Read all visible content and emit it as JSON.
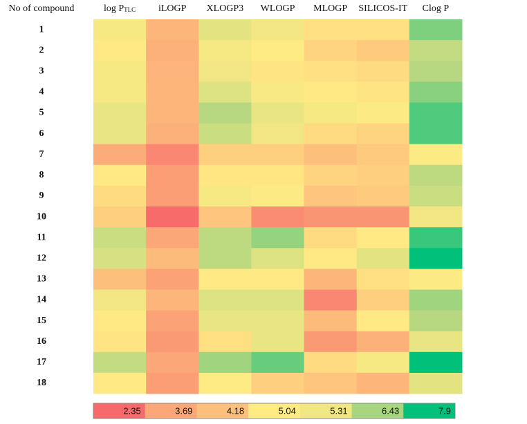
{
  "chart_data": {
    "type": "heatmap",
    "corner_label": "No of compound",
    "columns": [
      {
        "name": "log P",
        "sub": "TLC"
      },
      {
        "name": "iLOGP"
      },
      {
        "name": "XLOGP3"
      },
      {
        "name": "WLOGP"
      },
      {
        "name": "MLOGP"
      },
      {
        "name": "SILICOS-IT"
      },
      {
        "name": "Clog P"
      }
    ],
    "rows": [
      "1",
      "2",
      "3",
      "4",
      "5",
      "6",
      "7",
      "8",
      "9",
      "10",
      "11",
      "12",
      "13",
      "14",
      "15",
      "16",
      "17",
      "18"
    ],
    "values": [
      [
        5.2,
        4.0,
        5.5,
        5.3,
        4.8,
        4.8,
        6.8
      ],
      [
        5.0,
        3.9,
        5.2,
        5.05,
        4.6,
        4.4,
        6.0
      ],
      [
        5.2,
        3.95,
        5.3,
        4.9,
        4.8,
        4.7,
        6.2
      ],
      [
        5.2,
        4.0,
        5.6,
        5.15,
        5.0,
        4.9,
        6.7
      ],
      [
        5.4,
        4.0,
        6.2,
        5.4,
        5.2,
        5.1,
        7.2
      ],
      [
        5.4,
        3.9,
        5.9,
        5.3,
        4.7,
        4.6,
        7.2
      ],
      [
        3.8,
        3.0,
        4.5,
        4.5,
        4.2,
        4.4,
        5.1
      ],
      [
        5.0,
        3.5,
        4.95,
        4.95,
        4.6,
        4.5,
        6.1
      ],
      [
        4.7,
        3.5,
        5.2,
        5.1,
        4.3,
        4.4,
        5.9
      ],
      [
        4.5,
        2.4,
        4.3,
        3.1,
        3.3,
        3.3,
        5.3
      ],
      [
        5.9,
        3.7,
        6.1,
        6.6,
        4.7,
        5.0,
        7.4
      ],
      [
        5.7,
        4.1,
        6.1,
        5.6,
        5.0,
        5.5,
        7.9
      ],
      [
        4.2,
        3.6,
        5.0,
        5.0,
        4.0,
        4.8,
        5.1
      ],
      [
        5.3,
        4.0,
        5.6,
        5.6,
        3.0,
        4.5,
        6.5
      ],
      [
        5.0,
        3.6,
        5.4,
        5.4,
        4.1,
        5.0,
        6.2
      ],
      [
        4.9,
        3.4,
        4.8,
        5.4,
        3.4,
        3.9,
        5.4
      ],
      [
        6.0,
        3.7,
        6.5,
        7.0,
        4.7,
        5.2,
        7.9
      ],
      [
        5.0,
        3.5,
        5.05,
        4.5,
        4.3,
        4.0,
        5.5
      ]
    ],
    "scale": [
      {
        "value": 2.35,
        "color": "#f8696b"
      },
      {
        "value": 3.69,
        "color": "#fba777"
      },
      {
        "value": 4.18,
        "color": "#fdbf7c"
      },
      {
        "value": 5.04,
        "color": "#ffeb84"
      },
      {
        "value": 5.31,
        "color": "#f0e683"
      },
      {
        "value": 6.43,
        "color": "#a8d57f"
      },
      {
        "value": 7.9,
        "color": "#00c07a"
      }
    ]
  }
}
